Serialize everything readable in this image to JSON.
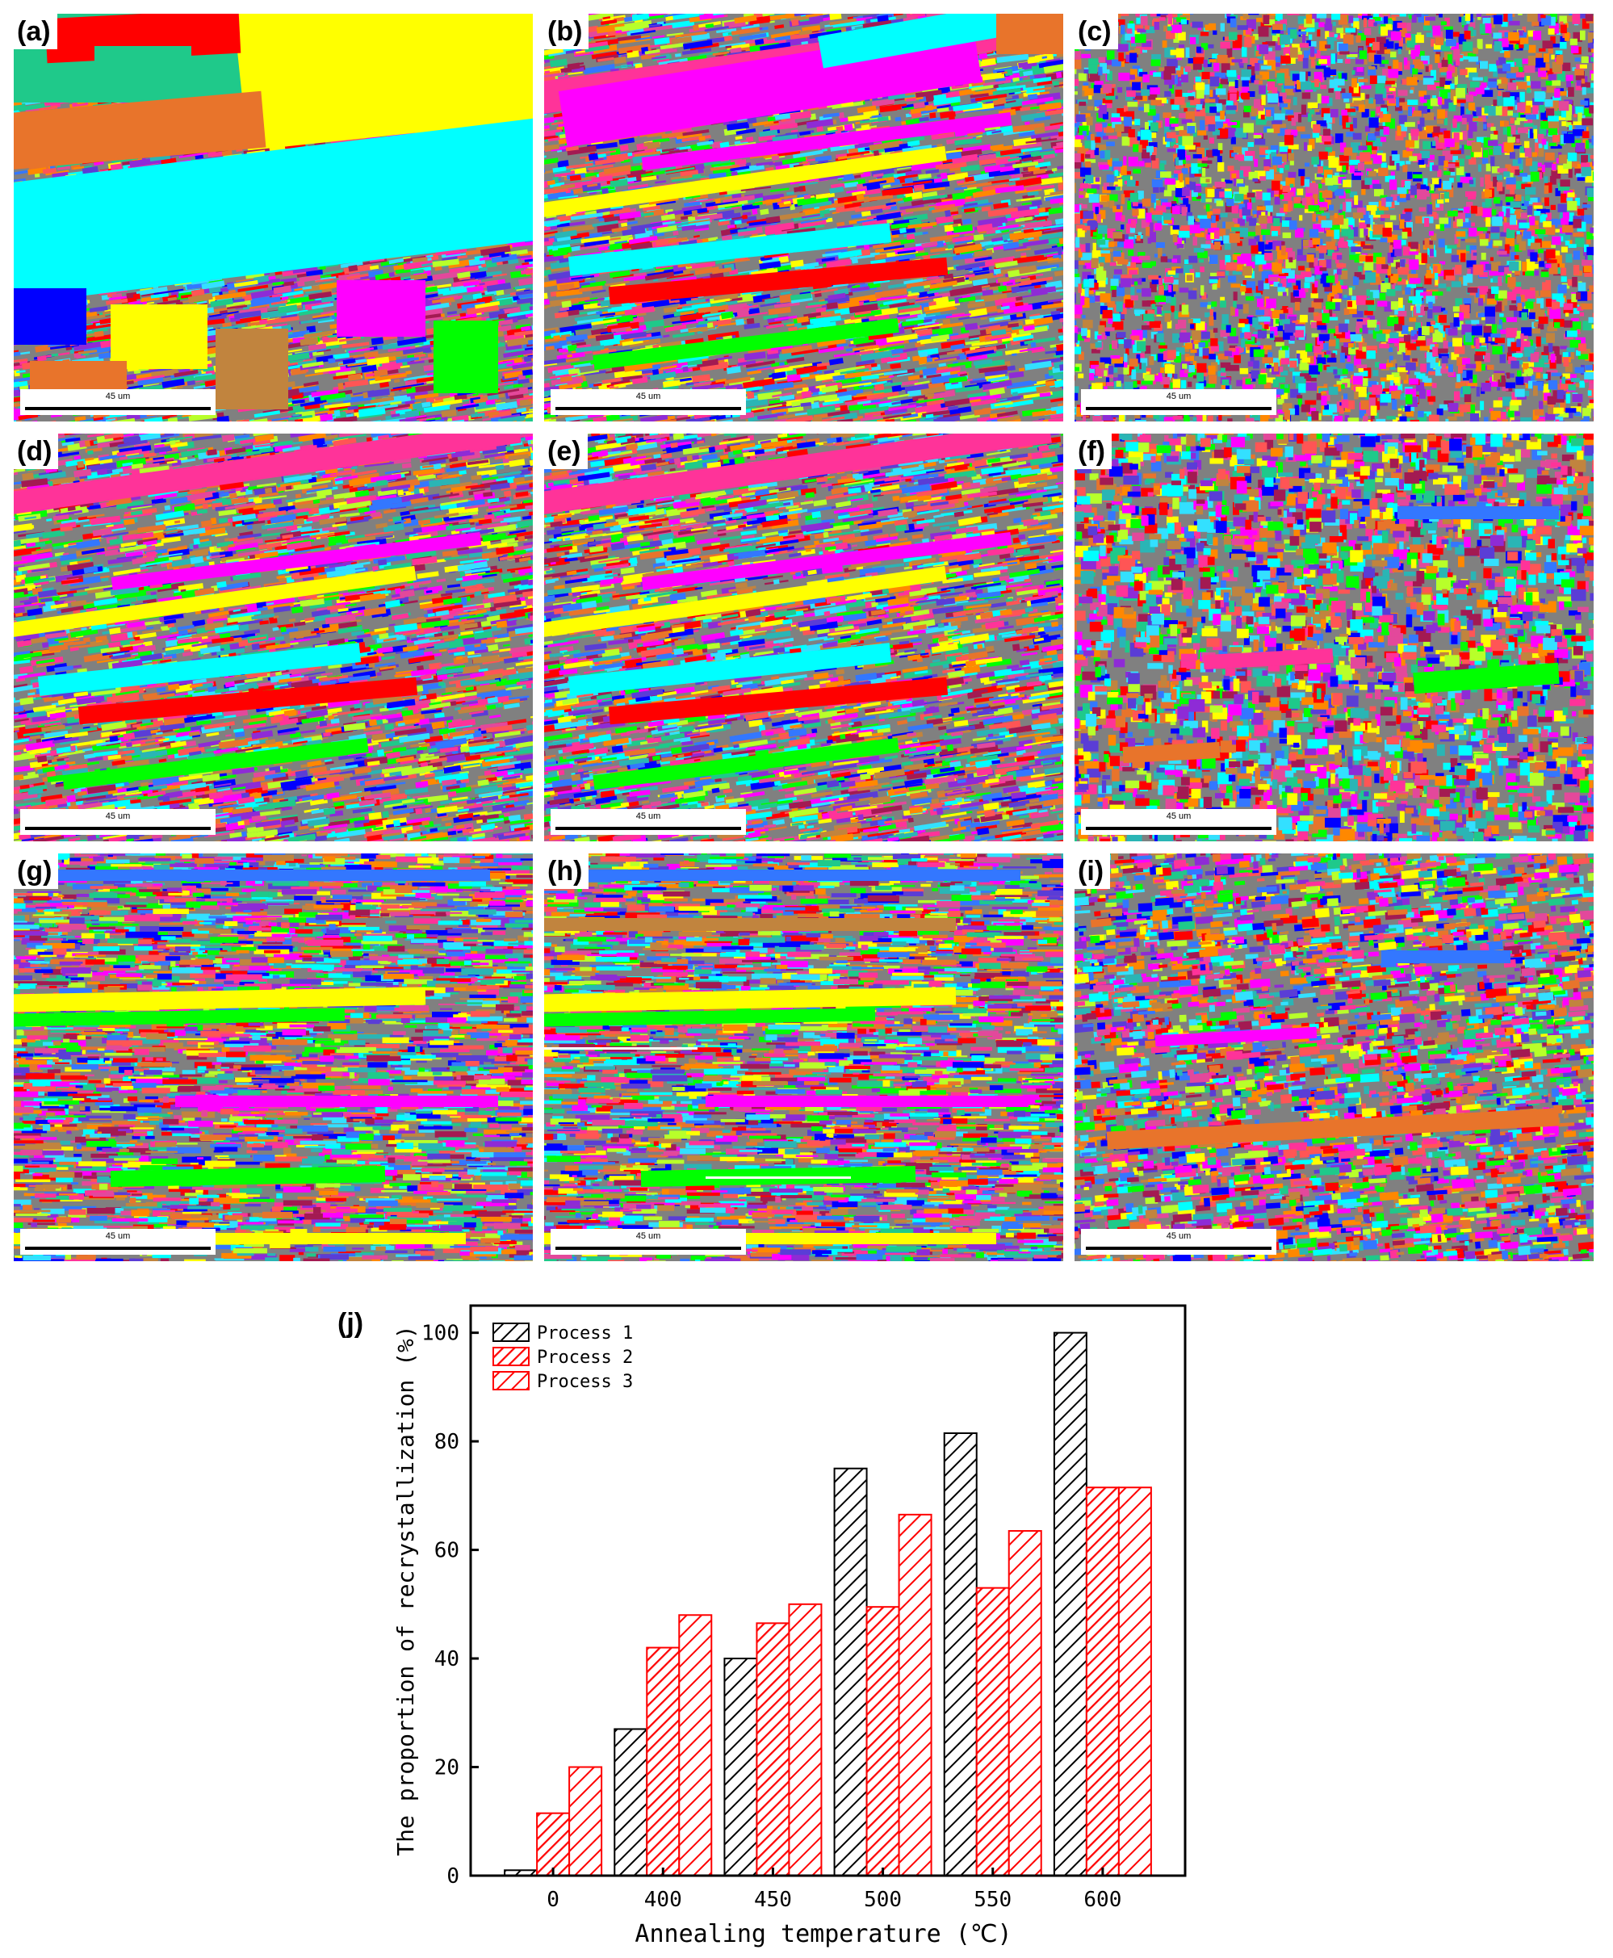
{
  "panels": [
    {
      "id": "a",
      "label": "(a)",
      "scale": "45 um",
      "style": "coarse"
    },
    {
      "id": "b",
      "label": "(b)",
      "scale": "45 um",
      "style": "stretched"
    },
    {
      "id": "c",
      "label": "(c)",
      "scale": "45 um",
      "style": "equiaxed"
    },
    {
      "id": "d",
      "label": "(d)",
      "scale": "45 um",
      "style": "stretched"
    },
    {
      "id": "e",
      "label": "(e)",
      "scale": "45 um",
      "style": "stretched"
    },
    {
      "id": "f",
      "label": "(f)",
      "scale": "45 um",
      "style": "equiaxed-coarse"
    },
    {
      "id": "g",
      "label": "(g)",
      "scale": "45 um",
      "style": "banded"
    },
    {
      "id": "h",
      "label": "(h)",
      "scale": "45 um",
      "style": "banded-fine"
    },
    {
      "id": "i",
      "label": "(i)",
      "scale": "45 um",
      "style": "mixed"
    }
  ],
  "grain_palette": [
    "#ff00ff",
    "#00ffff",
    "#ffff00",
    "#ff0000",
    "#0000ff",
    "#00ff00",
    "#ff3399",
    "#e8742b",
    "#1fc98a",
    "#3377ff",
    "#c1843e",
    "#a31a52",
    "#33e0ff",
    "#ff8800",
    "#8e2bd6",
    "#b8ff2a",
    "#e3489b",
    "#2ab5b5",
    "#ff5555",
    "#5a3dd6"
  ],
  "chart_data": {
    "type": "bar",
    "panel_label": "(j)",
    "categories": [
      "0",
      "400",
      "450",
      "500",
      "550",
      "600"
    ],
    "series": [
      {
        "name": "Process 1",
        "values": [
          1,
          27,
          40,
          75,
          81.5,
          100
        ],
        "color": "#000000"
      },
      {
        "name": "Process 2",
        "values": [
          11.5,
          42,
          46.5,
          49.5,
          53,
          71.5
        ],
        "color": "#ff0000"
      },
      {
        "name": "Process 3",
        "values": [
          20,
          48,
          50,
          66.5,
          63.5,
          71.5
        ],
        "color": "#ff0000"
      }
    ],
    "xlabel": "Annealing temperature (℃)",
    "ylabel": "The proportion of  recrystallization (%)",
    "ylim": [
      0,
      105
    ],
    "yticks": [
      0,
      20,
      40,
      60,
      80,
      100
    ],
    "legend_position": "top-left",
    "hatch": "diagonal",
    "grid": false
  }
}
